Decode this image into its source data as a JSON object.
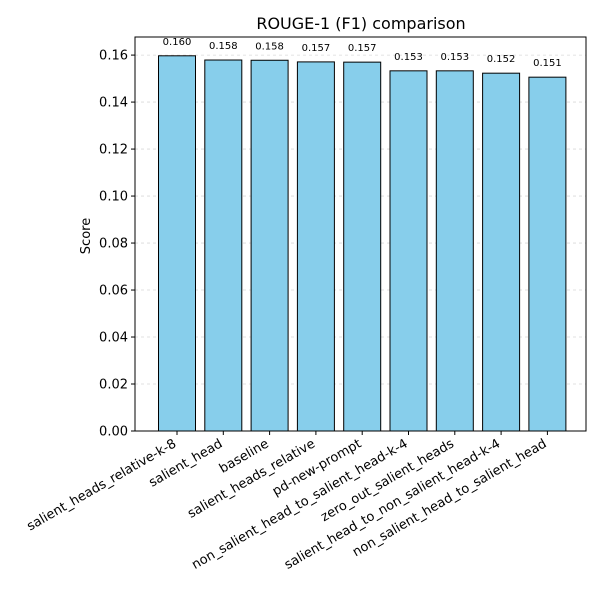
{
  "chart_data": {
    "type": "bar",
    "title": "ROUGE-1 (F1) comparison",
    "xlabel": "",
    "ylabel": "Score",
    "categories": [
      "salient_heads_relative-k-8",
      "salient_head",
      "baseline",
      "salient_heads_relative",
      "pd-new-prompt",
      "non_salient_head_to_salient_head-k-4",
      "zero_out_salient_heads",
      "salient_head_to_non_salient_head-k-4",
      "non_salient_head_to_salient_head"
    ],
    "values": [
      0.1597,
      0.1579,
      0.1578,
      0.1571,
      0.157,
      0.1533,
      0.1533,
      0.1523,
      0.1506
    ],
    "data_labels": [
      "0.160",
      "0.158",
      "0.158",
      "0.157",
      "0.157",
      "0.153",
      "0.153",
      "0.152",
      "0.151"
    ],
    "yticks": [
      "0.00",
      "0.02",
      "0.04",
      "0.06",
      "0.08",
      "0.10",
      "0.12",
      "0.14",
      "0.16"
    ],
    "ylim": [
      0,
      0.1677
    ],
    "grid": "y-dashed",
    "colors": {
      "bar_fill": "#87ceeb",
      "bar_edge": "#000000",
      "grid": "#d9d9d9"
    }
  }
}
